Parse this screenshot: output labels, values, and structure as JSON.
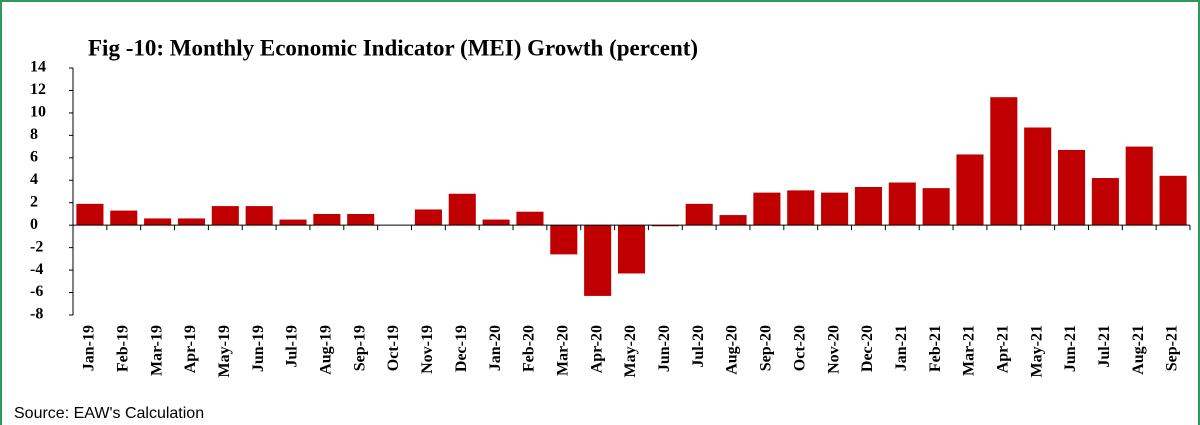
{
  "chart_data": {
    "type": "bar",
    "title": "Fig -10: Monthly Economic Indicator (MEI) Growth (percent)",
    "source": "Source: EAW's Calculation",
    "categories": [
      "Jan-19",
      "Feb-19",
      "Mar-19",
      "Apr-19",
      "May-19",
      "Jun-19",
      "Jul-19",
      "Aug-19",
      "Sep-19",
      "Oct-19",
      "Nov-19",
      "Dec-19",
      "Jan-20",
      "Feb-20",
      "Mar-20",
      "Apr-20",
      "May-20",
      "Jun-20",
      "Jul-20",
      "Aug-20",
      "Sep-20",
      "Oct-20",
      "Nov-20",
      "Dec-20",
      "Jan-21",
      "Feb-21",
      "Mar-21",
      "Apr-21",
      "May-21",
      "Jun-21",
      "Jul-21",
      "Aug-21",
      "Sep-21"
    ],
    "values": [
      1.9,
      1.3,
      0.6,
      0.6,
      1.7,
      1.7,
      0.5,
      1.0,
      1.0,
      0,
      1.4,
      2.8,
      0.5,
      1.2,
      -2.6,
      -6.3,
      -4.3,
      -0.1,
      1.9,
      0.9,
      2.9,
      3.1,
      2.9,
      3.4,
      3.8,
      3.3,
      6.3,
      11.4,
      8.7,
      6.7,
      4.2,
      7.0,
      4.4
    ],
    "color": "#c00000",
    "ylim": [
      -8,
      14
    ],
    "yticks": [
      -8,
      -6,
      -4,
      -2,
      0,
      2,
      4,
      6,
      8,
      10,
      12,
      14
    ],
    "grid": false
  }
}
